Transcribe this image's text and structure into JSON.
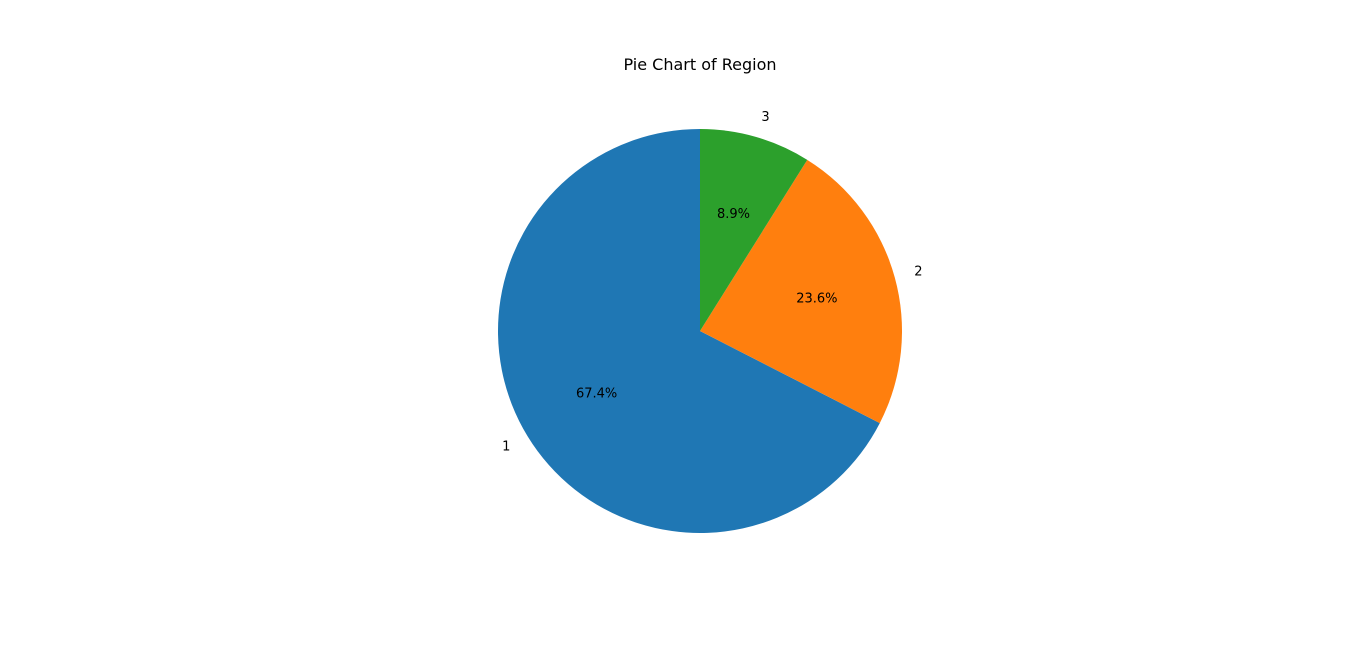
{
  "chart_data": {
    "type": "pie",
    "title": "Pie Chart of Region",
    "labels": [
      "1",
      "2",
      "3"
    ],
    "values": [
      67.4,
      23.6,
      8.9
    ],
    "autopct_labels": [
      "67.4%",
      "23.6%",
      "8.9%"
    ],
    "colors": [
      "#1f77b4",
      "#ff7f0e",
      "#2ca02c"
    ],
    "start_angle_deg": 90,
    "direction": "counterclockwise",
    "legend": "none"
  }
}
